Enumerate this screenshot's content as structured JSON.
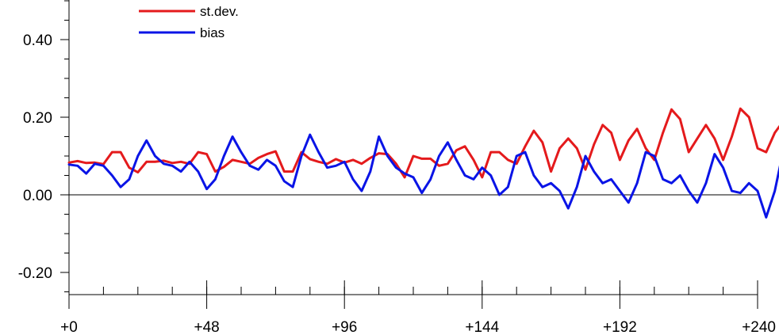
{
  "chart_data": {
    "type": "line",
    "title": "",
    "xlabel": "",
    "ylabel": "",
    "xlim": [
      0,
      240
    ],
    "ylim": [
      -0.26,
      0.5
    ],
    "x_ticks": [
      0,
      48,
      96,
      144,
      192,
      240
    ],
    "x_tick_labels": [
      "+0",
      "+48",
      "+96",
      "+144",
      "+192",
      "+240"
    ],
    "x_minor_step": 12,
    "y_ticks": [
      -0.2,
      0.0,
      0.2,
      0.4
    ],
    "y_tick_labels": [
      "-0.20",
      "0.00",
      "0.20",
      "0.40"
    ],
    "y_minor_step": 0.05,
    "zero_line": true,
    "grid": false,
    "legend_position": "top-left",
    "series": [
      {
        "name": "st.dev.",
        "color": "#e41a1c",
        "points": [
          [
            0,
            0.083
          ],
          [
            3,
            0.087
          ],
          [
            6,
            0.082
          ],
          [
            9,
            0.083
          ],
          [
            12,
            0.079
          ],
          [
            15,
            0.11
          ],
          [
            18,
            0.11
          ],
          [
            21,
            0.07
          ],
          [
            24,
            0.058
          ],
          [
            27,
            0.085
          ],
          [
            30,
            0.085
          ],
          [
            33,
            0.088
          ],
          [
            36,
            0.082
          ],
          [
            39,
            0.085
          ],
          [
            42,
            0.08
          ],
          [
            45,
            0.11
          ],
          [
            48,
            0.105
          ],
          [
            51,
            0.06
          ],
          [
            54,
            0.072
          ],
          [
            57,
            0.09
          ],
          [
            60,
            0.085
          ],
          [
            63,
            0.08
          ],
          [
            66,
            0.095
          ],
          [
            69,
            0.105
          ],
          [
            72,
            0.112
          ],
          [
            75,
            0.06
          ],
          [
            78,
            0.06
          ],
          [
            81,
            0.11
          ],
          [
            84,
            0.092
          ],
          [
            87,
            0.085
          ],
          [
            90,
            0.08
          ],
          [
            93,
            0.092
          ],
          [
            96,
            0.083
          ],
          [
            99,
            0.09
          ],
          [
            102,
            0.08
          ],
          [
            105,
            0.095
          ],
          [
            108,
            0.107
          ],
          [
            111,
            0.105
          ],
          [
            114,
            0.08
          ],
          [
            117,
            0.045
          ],
          [
            120,
            0.1
          ],
          [
            123,
            0.093
          ],
          [
            126,
            0.093
          ],
          [
            129,
            0.075
          ],
          [
            132,
            0.08
          ],
          [
            135,
            0.115
          ],
          [
            138,
            0.125
          ],
          [
            141,
            0.09
          ],
          [
            144,
            0.045
          ],
          [
            147,
            0.11
          ],
          [
            150,
            0.11
          ],
          [
            153,
            0.09
          ],
          [
            156,
            0.08
          ],
          [
            159,
            0.125
          ],
          [
            162,
            0.165
          ],
          [
            165,
            0.135
          ],
          [
            168,
            0.06
          ],
          [
            171,
            0.12
          ],
          [
            174,
            0.145
          ],
          [
            177,
            0.12
          ],
          [
            180,
            0.065
          ],
          [
            183,
            0.13
          ],
          [
            186,
            0.18
          ],
          [
            189,
            0.16
          ],
          [
            192,
            0.09
          ],
          [
            195,
            0.14
          ],
          [
            198,
            0.17
          ],
          [
            201,
            0.12
          ],
          [
            204,
            0.09
          ],
          [
            207,
            0.16
          ],
          [
            210,
            0.22
          ],
          [
            213,
            0.195
          ],
          [
            216,
            0.11
          ],
          [
            219,
            0.145
          ],
          [
            222,
            0.18
          ],
          [
            225,
            0.145
          ],
          [
            228,
            0.09
          ],
          [
            231,
            0.15
          ],
          [
            234,
            0.222
          ],
          [
            237,
            0.2
          ],
          [
            240,
            0.12
          ],
          [
            243,
            0.11
          ],
          [
            246,
            0.16
          ],
          [
            248,
            0.18
          ],
          [
            250,
            0.175
          ]
        ]
      },
      {
        "name": "bias",
        "color": "#0a14e6",
        "points": [
          [
            0,
            0.078
          ],
          [
            3,
            0.075
          ],
          [
            6,
            0.055
          ],
          [
            9,
            0.08
          ],
          [
            12,
            0.075
          ],
          [
            15,
            0.05
          ],
          [
            18,
            0.02
          ],
          [
            21,
            0.04
          ],
          [
            24,
            0.1
          ],
          [
            27,
            0.14
          ],
          [
            30,
            0.1
          ],
          [
            33,
            0.08
          ],
          [
            36,
            0.075
          ],
          [
            39,
            0.06
          ],
          [
            42,
            0.085
          ],
          [
            45,
            0.06
          ],
          [
            48,
            0.015
          ],
          [
            51,
            0.04
          ],
          [
            54,
            0.1
          ],
          [
            57,
            0.15
          ],
          [
            60,
            0.11
          ],
          [
            63,
            0.075
          ],
          [
            66,
            0.065
          ],
          [
            69,
            0.09
          ],
          [
            72,
            0.075
          ],
          [
            75,
            0.035
          ],
          [
            78,
            0.02
          ],
          [
            81,
            0.1
          ],
          [
            84,
            0.155
          ],
          [
            87,
            0.11
          ],
          [
            90,
            0.07
          ],
          [
            93,
            0.075
          ],
          [
            96,
            0.085
          ],
          [
            99,
            0.04
          ],
          [
            102,
            0.01
          ],
          [
            105,
            0.06
          ],
          [
            108,
            0.15
          ],
          [
            111,
            0.1
          ],
          [
            114,
            0.07
          ],
          [
            117,
            0.055
          ],
          [
            120,
            0.045
          ],
          [
            123,
            0.005
          ],
          [
            126,
            0.04
          ],
          [
            129,
            0.1
          ],
          [
            132,
            0.135
          ],
          [
            135,
            0.09
          ],
          [
            138,
            0.05
          ],
          [
            141,
            0.04
          ],
          [
            144,
            0.07
          ],
          [
            147,
            0.05
          ],
          [
            150,
            0.0
          ],
          [
            153,
            0.02
          ],
          [
            156,
            0.1
          ],
          [
            159,
            0.11
          ],
          [
            162,
            0.05
          ],
          [
            165,
            0.02
          ],
          [
            168,
            0.03
          ],
          [
            171,
            0.01
          ],
          [
            174,
            -0.035
          ],
          [
            177,
            0.02
          ],
          [
            180,
            0.1
          ],
          [
            183,
            0.06
          ],
          [
            186,
            0.03
          ],
          [
            189,
            0.04
          ],
          [
            192,
            0.01
          ],
          [
            195,
            -0.02
          ],
          [
            198,
            0.03
          ],
          [
            201,
            0.11
          ],
          [
            204,
            0.1
          ],
          [
            207,
            0.04
          ],
          [
            210,
            0.03
          ],
          [
            213,
            0.05
          ],
          [
            216,
            0.01
          ],
          [
            219,
            -0.02
          ],
          [
            222,
            0.03
          ],
          [
            225,
            0.105
          ],
          [
            228,
            0.07
          ],
          [
            231,
            0.01
          ],
          [
            234,
            0.005
          ],
          [
            237,
            0.03
          ],
          [
            240,
            0.01
          ],
          [
            243,
            -0.058
          ],
          [
            246,
            0.01
          ],
          [
            248,
            0.08
          ],
          [
            250,
            0.04
          ]
        ]
      }
    ]
  }
}
